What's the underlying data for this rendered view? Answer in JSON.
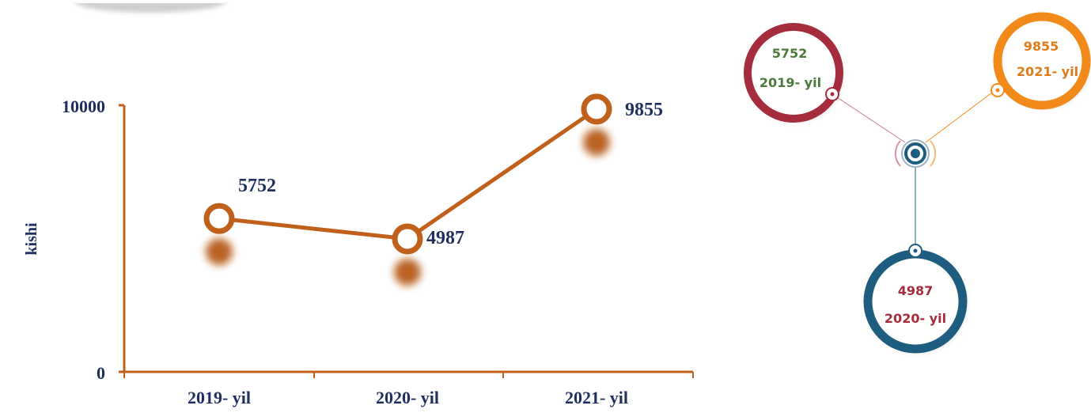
{
  "chart_data": [
    {
      "type": "line",
      "categories": [
        "2019- yil",
        "2020- yil",
        "2021- yil"
      ],
      "series": [
        {
          "values": [
            5752,
            4987,
            9855
          ]
        }
      ],
      "data_labels": [
        "5752",
        "4987",
        "9855"
      ],
      "ylabel": "kishi",
      "ylim": [
        0,
        10000
      ],
      "yticks": [
        "0",
        "10000"
      ],
      "grid": false,
      "colors": {
        "line": "#c0601b",
        "axis": "#c0601b",
        "text": "#1f2f5e",
        "shadow": "#b3520f"
      }
    },
    {
      "type": "diagram",
      "nodes": [
        {
          "value": "5752",
          "label": "2019- yil",
          "ring_color": "#a52c3c",
          "value_color": "#4a7a3a",
          "label_color": "#4a7a3a"
        },
        {
          "value": "9855",
          "label": "2021- yil",
          "ring_color": "#f28a1a",
          "value_color": "#e07b1a",
          "label_color": "#e07b1a"
        },
        {
          "value": "4987",
          "label": "2020- yil",
          "ring_color": "#1e5c80",
          "value_color": "#a52c3c",
          "label_color": "#a52c3c"
        }
      ],
      "hub_color": "#1e5c80"
    }
  ]
}
